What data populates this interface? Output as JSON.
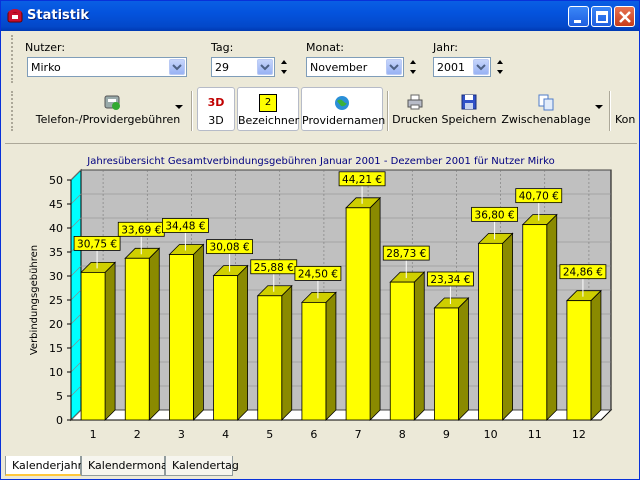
{
  "window": {
    "title": "Statistik",
    "title_icon": "phone-icon"
  },
  "filters": {
    "nutzer": {
      "label": "Nutzer:",
      "value": "Mirko"
    },
    "tag": {
      "label": "Tag:",
      "value": "29"
    },
    "monat": {
      "label": "Monat:",
      "value": "November"
    },
    "jahr": {
      "label": "Jahr:",
      "value": "2001"
    }
  },
  "toolbar": {
    "telefon_label": "Telefon-/Providergebühren",
    "toggle_3d_label": "3D",
    "bezeichner_label": "Bezeichner",
    "bezeichner_badge": "2",
    "providernamen_label": "Providernamen",
    "drucken_label": "Drucken",
    "speichern_label": "Speichern",
    "zwischenablage_label": "Zwischenablage",
    "overflow_label": "Kon"
  },
  "tabs": [
    "Kalenderjahr",
    "Kalendermonat",
    "Kalendertag"
  ],
  "chart_data": {
    "type": "bar",
    "title": "Jahresübersicht Gesamtverbindungsgebühren Januar 2001 - Dezember 2001 für Nutzer Mirko",
    "ylabel": "Verbindungsgebühren",
    "xlabel": "",
    "categories": [
      "1",
      "2",
      "3",
      "4",
      "5",
      "6",
      "7",
      "8",
      "9",
      "10",
      "11",
      "12"
    ],
    "values": [
      30.75,
      33.69,
      34.48,
      30.08,
      25.88,
      24.5,
      44.21,
      28.73,
      23.34,
      36.8,
      40.7,
      24.86
    ],
    "data_labels": [
      "30,75 €",
      "33,69 €",
      "34,48 €",
      "30,08 €",
      "25,88 €",
      "24,50 €",
      "44,21 €",
      "28,73 €",
      "23,34 €",
      "36,80 €",
      "40,70 €",
      "24,86 €"
    ],
    "y_ticks": [
      "0",
      "5",
      "10",
      "15",
      "20",
      "25",
      "30",
      "35",
      "40",
      "45",
      "50"
    ],
    "ylim": [
      0,
      50
    ],
    "style": "3d",
    "colors": {
      "bar": "#FFFF00",
      "bar_side": "#8A8A00",
      "bar_top": "#CFCF00",
      "back_wall": "#C0C0C0",
      "label_bg": "#FFFFC0",
      "title": "#000080",
      "left_wall": "#00FFFF"
    }
  }
}
